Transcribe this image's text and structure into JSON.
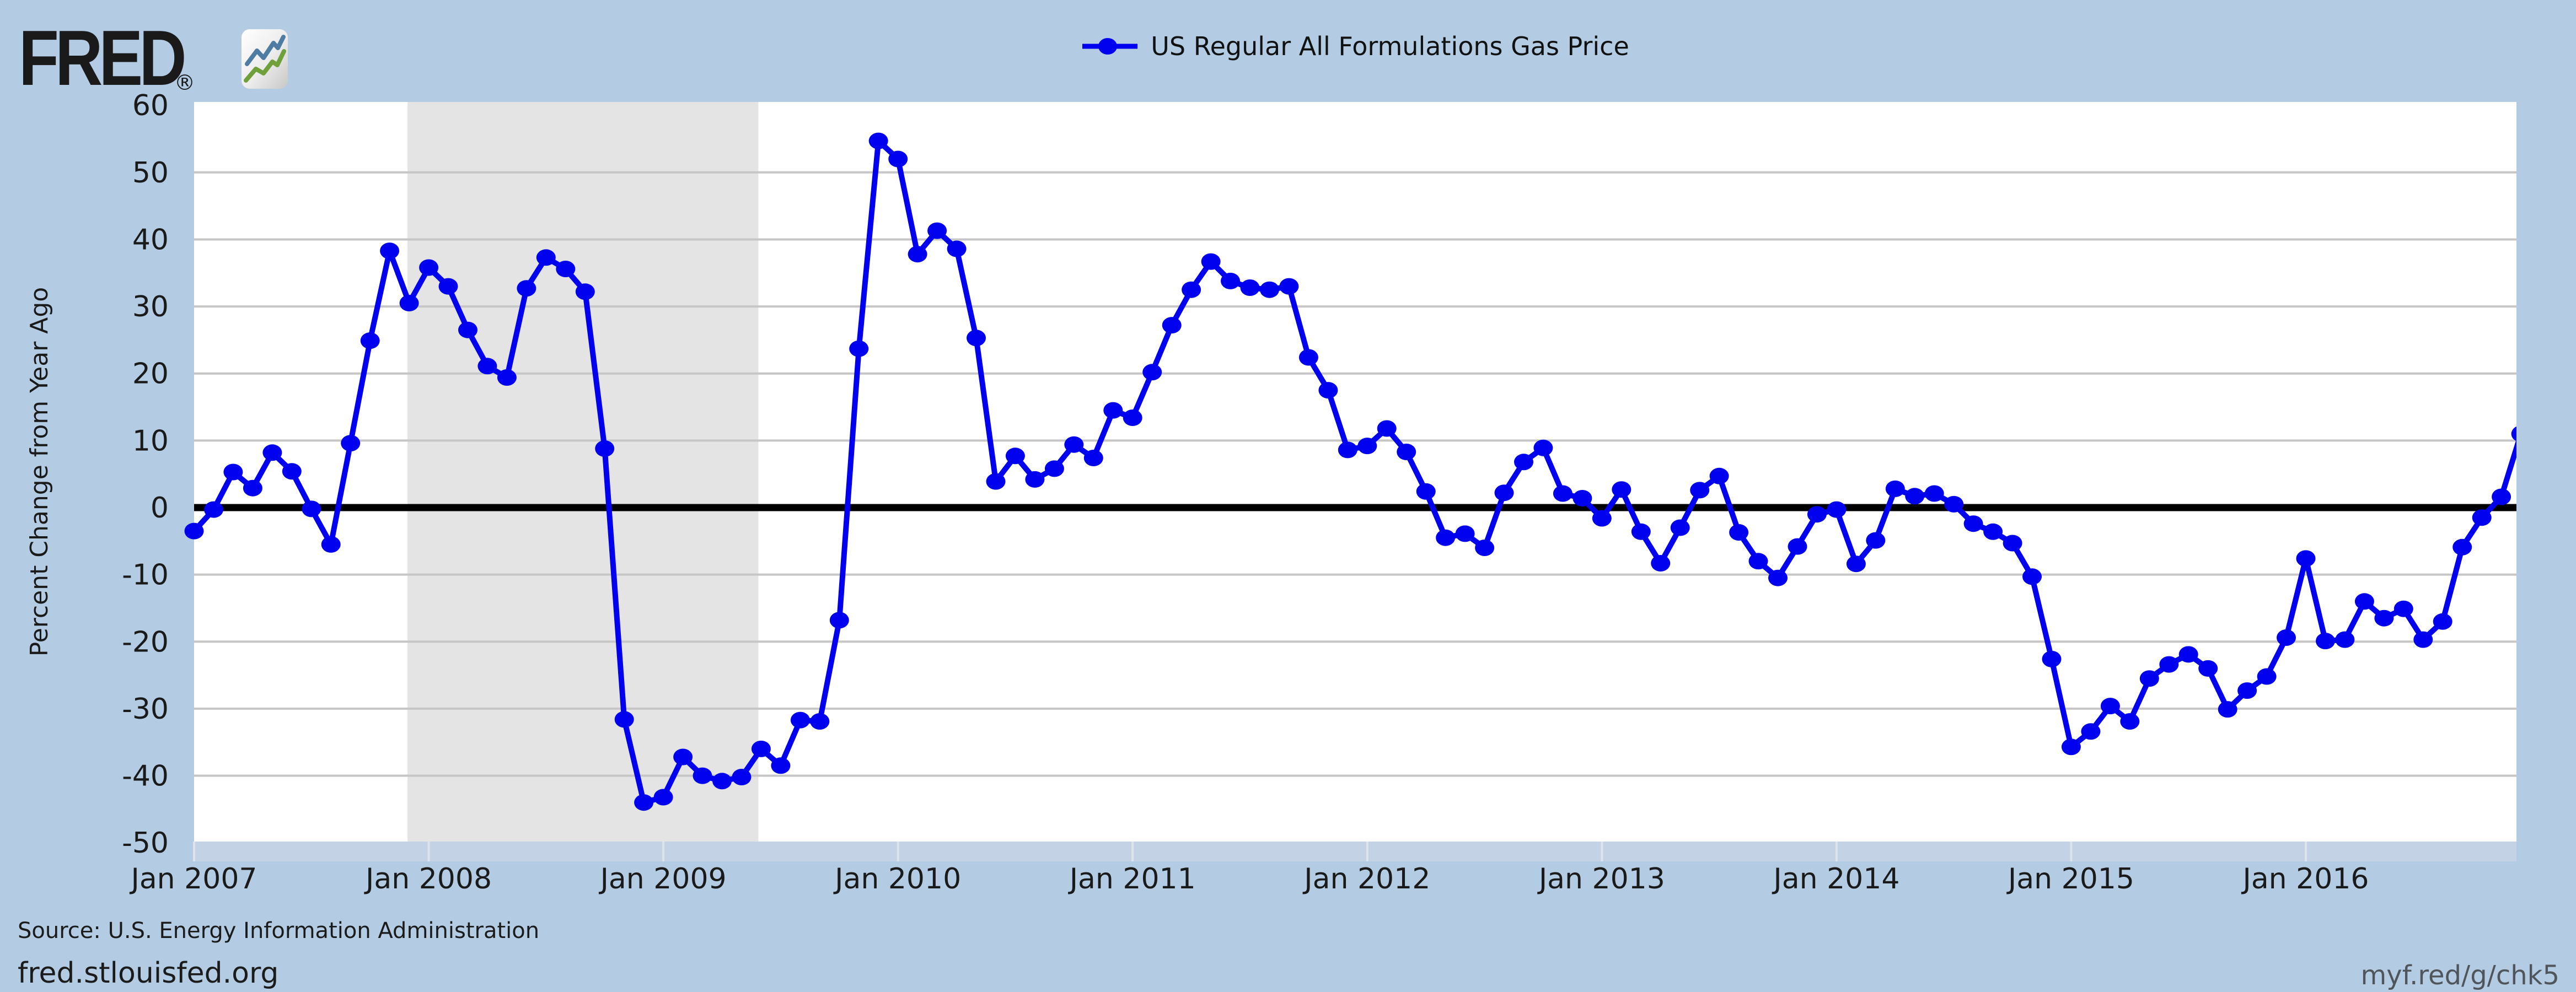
{
  "header": {
    "logo_text": "FRED",
    "registered_mark": "®"
  },
  "legend": {
    "label": "US Regular All Formulations Gas Price"
  },
  "footer": {
    "source": "Source: U.S. Energy Information Administration",
    "site": "fred.stlouisfed.org",
    "short_url": "myf.red/g/chk5"
  },
  "colors": {
    "background": "#b3cce4",
    "plot_background": "#ffffff",
    "recession_band": "#e4e4e4",
    "gridline": "#c6c6c6",
    "zero_line": "#000000",
    "series_line": "#0101f0",
    "axis_strip": "#c3d2e5",
    "axis_tick": "#dde4ed",
    "tick_label": "#1a1a1a"
  },
  "chart_data": {
    "type": "line",
    "title": "",
    "ylabel": "Percent Change from Year Ago",
    "xlabel": "",
    "ylim": [
      -50,
      60
    ],
    "y_ticks": [
      60,
      50,
      40,
      30,
      20,
      10,
      0,
      -10,
      -20,
      -30,
      -40,
      -50
    ],
    "x_tick_labels": [
      "Jan 2007",
      "Jan 2008",
      "Jan 2009",
      "Jan 2010",
      "Jan 2011",
      "Jan 2012",
      "Jan 2013",
      "Jan 2014",
      "Jan 2015",
      "Jan 2016"
    ],
    "x_tick_month_indices": [
      0,
      12,
      24,
      36,
      48,
      60,
      72,
      84,
      96,
      108
    ],
    "frequency": "monthly",
    "start_month": "2007-01",
    "end_month": "2016-12",
    "legend_position": "top-center",
    "grid": true,
    "recession_bands": [
      {
        "start": "2007-12",
        "end": "2009-06",
        "start_index": 11,
        "end_index": 29
      }
    ],
    "series": [
      {
        "name": "US Regular All Formulations Gas Price",
        "values": [
          -3.5,
          -0.3,
          5.3,
          2.9,
          8.2,
          5.4,
          -0.2,
          -5.5,
          9.6,
          24.9,
          38.3,
          30.5,
          35.8,
          33.0,
          26.5,
          21.1,
          19.4,
          32.7,
          37.3,
          35.6,
          32.2,
          8.8,
          -31.6,
          -44.0,
          -43.2,
          -37.2,
          -40.0,
          -40.8,
          -40.2,
          -36.0,
          -38.5,
          -31.7,
          -31.9,
          -16.8,
          23.7,
          54.7,
          52.0,
          37.8,
          41.3,
          38.6,
          25.3,
          3.9,
          7.7,
          4.2,
          5.8,
          9.4,
          7.4,
          14.5,
          13.4,
          20.2,
          27.2,
          32.5,
          36.7,
          33.8,
          32.8,
          32.5,
          33.0,
          22.4,
          17.5,
          8.6,
          9.2,
          11.8,
          8.3,
          2.4,
          -4.5,
          -3.9,
          -6.0,
          2.2,
          6.8,
          8.9,
          2.1,
          1.4,
          -1.6,
          2.7,
          -3.6,
          -8.3,
          -3.0,
          2.6,
          4.7,
          -3.7,
          -8.0,
          -10.5,
          -5.8,
          -1.0,
          -0.3,
          -8.4,
          -4.9,
          2.8,
          1.7,
          2.1,
          0.5,
          -2.4,
          -3.6,
          -5.3,
          -10.3,
          -22.6,
          -35.7,
          -33.4,
          -29.6,
          -31.9,
          -25.5,
          -23.4,
          -21.9,
          -24.0,
          -30.1,
          -27.3,
          -25.2,
          -19.4,
          -7.6,
          -19.9,
          -19.7,
          -14.0,
          -16.5,
          -15.1,
          -19.7,
          -17.0,
          -5.9,
          -1.5,
          1.6,
          11.0
        ]
      }
    ]
  }
}
